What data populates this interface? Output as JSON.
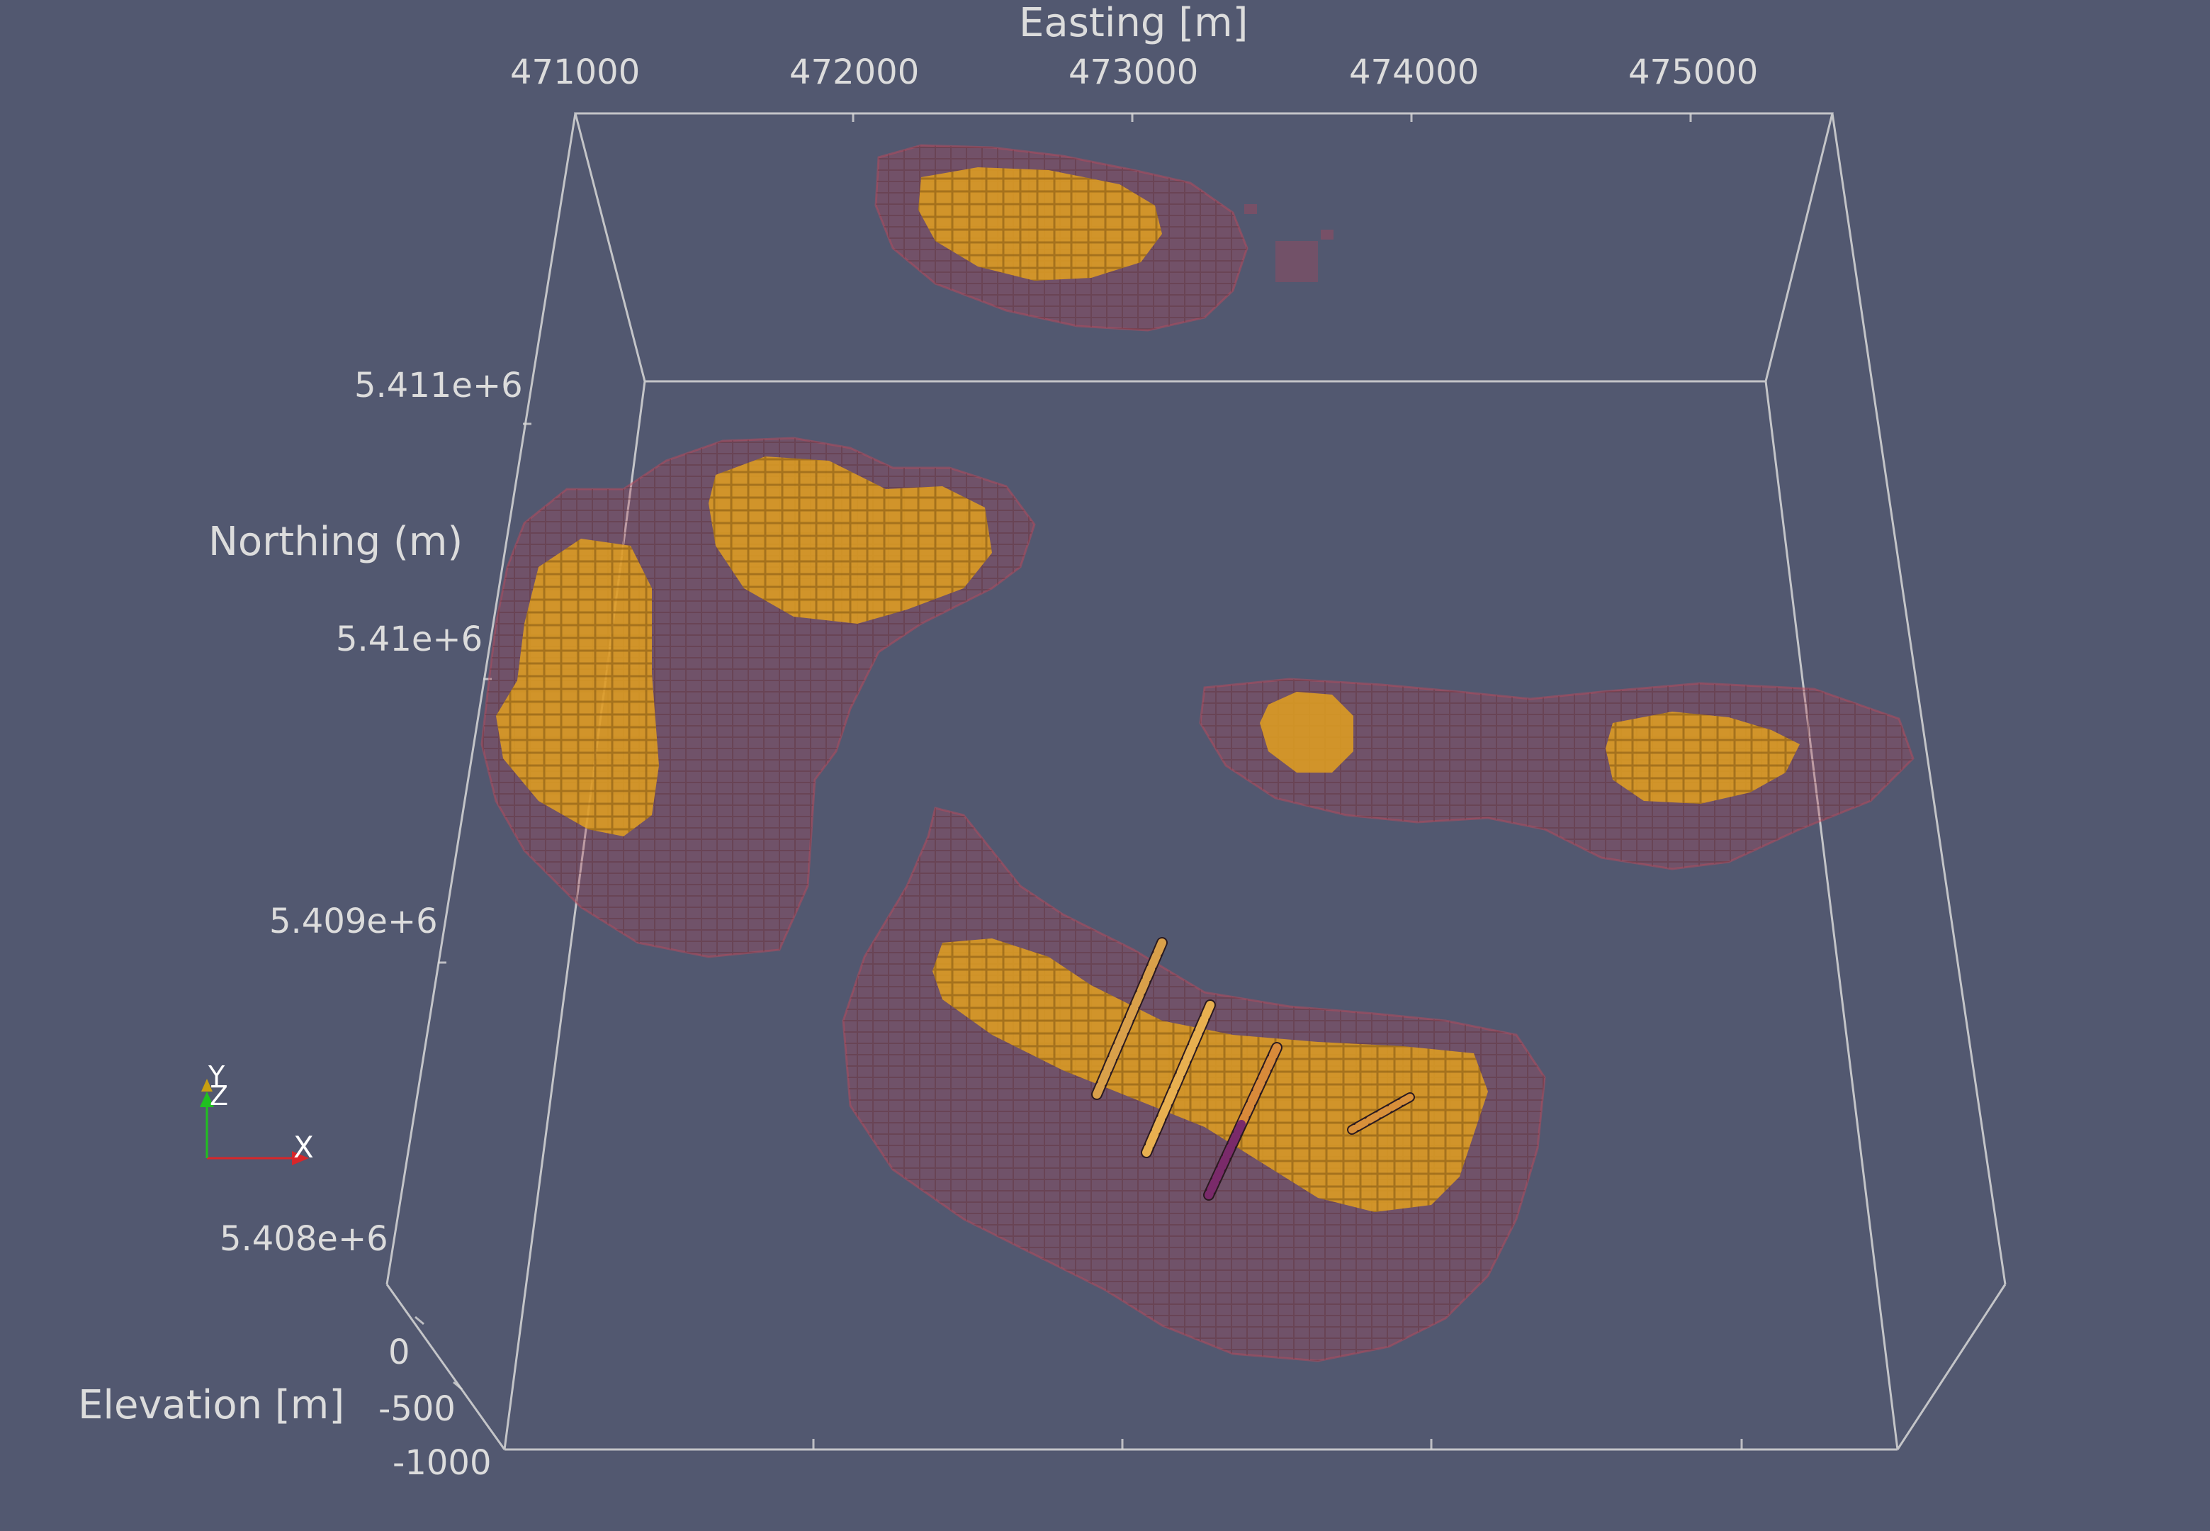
{
  "axes": {
    "easting": {
      "title": "Easting [m]",
      "ticks": [
        "471000",
        "472000",
        "473000",
        "474000",
        "475000"
      ]
    },
    "northing": {
      "title": "Northing (m)",
      "ticks": [
        "5.411e+6",
        "5.41e+6",
        "5.409e+6",
        "5.408e+6"
      ]
    },
    "elevation": {
      "title": "Elevation [m]",
      "ticks": [
        "0",
        "-500",
        "-1000"
      ]
    }
  },
  "orientation_widget": {
    "x_label": "X",
    "y_label": "Y",
    "z_label": "Z"
  },
  "colors": {
    "background": "#525870",
    "shell": "#b0465a",
    "core": "#e2a020",
    "box_lines": "#d8d8d8",
    "x_axis": "#d8262a",
    "y_axis": "#20c020",
    "z_axis": "#e0c010"
  }
}
